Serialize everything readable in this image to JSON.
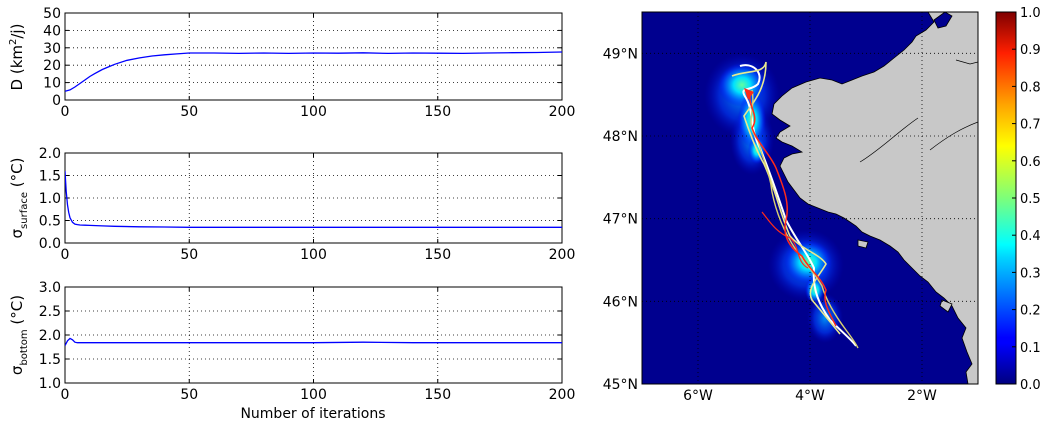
{
  "chart_data": [
    {
      "type": "line",
      "panel": "left-top",
      "ylabel": "D (km²/j)",
      "ylabel_prefix": "D (km",
      "ylabel_sup": "2",
      "ylabel_suffix": "/j)",
      "xlabel": "",
      "xlim": [
        0,
        200
      ],
      "ylim": [
        0,
        50
      ],
      "xticks": [
        "0",
        "50",
        "100",
        "150",
        "200"
      ],
      "yticks": [
        "0",
        "10",
        "20",
        "30",
        "40",
        "50"
      ],
      "grid": true,
      "color": "#0000ff",
      "x": [
        0,
        2,
        4,
        6,
        8,
        10,
        12,
        15,
        18,
        20,
        25,
        30,
        35,
        40,
        45,
        50,
        60,
        70,
        80,
        90,
        100,
        110,
        120,
        130,
        140,
        150,
        160,
        170,
        180,
        190,
        200
      ],
      "y": [
        5,
        5.8,
        7.5,
        9.5,
        11.5,
        13.5,
        15.2,
        17.5,
        19.3,
        20.5,
        22.8,
        24.2,
        25.3,
        26,
        26.5,
        27,
        27,
        26.8,
        27,
        26.8,
        27,
        26.9,
        27.1,
        26.8,
        27,
        26.9,
        26.8,
        27,
        27.2,
        27.3,
        27.6
      ]
    },
    {
      "type": "line",
      "panel": "left-middle",
      "ylabel_symbol": "σ",
      "ylabel_sub": "surface",
      "ylabel_suffix": " (°C)",
      "xlabel": "",
      "xlim": [
        0,
        200
      ],
      "ylim": [
        0,
        2
      ],
      "xticks": [
        "0",
        "50",
        "100",
        "150",
        "200"
      ],
      "yticks": [
        "0.0",
        "0.5",
        "1.0",
        "1.5",
        "2.0"
      ],
      "grid": true,
      "color": "#0000ff",
      "x": [
        0,
        0.5,
        1,
        1.5,
        2,
        3,
        4,
        5,
        6,
        8,
        10,
        15,
        20,
        30,
        40,
        50,
        75,
        100,
        125,
        150,
        175,
        200
      ],
      "y": [
        1.6,
        1.15,
        0.85,
        0.68,
        0.56,
        0.46,
        0.42,
        0.41,
        0.4,
        0.395,
        0.39,
        0.38,
        0.37,
        0.36,
        0.355,
        0.35,
        0.35,
        0.35,
        0.35,
        0.35,
        0.35,
        0.35
      ]
    },
    {
      "type": "line",
      "panel": "left-bottom",
      "ylabel_symbol": "σ",
      "ylabel_sub": "bottom",
      "ylabel_suffix": " (°C)",
      "xlabel": "Number of iterations",
      "xlim": [
        0,
        200
      ],
      "ylim": [
        1,
        3
      ],
      "xticks": [
        "0",
        "50",
        "100",
        "150",
        "200"
      ],
      "yticks": [
        "1.0",
        "1.5",
        "2.0",
        "2.5",
        "3.0"
      ],
      "grid": true,
      "color": "#0000ff",
      "x": [
        0,
        1,
        2,
        3,
        4,
        5,
        6,
        8,
        10,
        20,
        40,
        60,
        80,
        100,
        120,
        140,
        160,
        180,
        200
      ],
      "y": [
        1.78,
        1.88,
        1.93,
        1.9,
        1.85,
        1.84,
        1.84,
        1.84,
        1.84,
        1.84,
        1.84,
        1.84,
        1.84,
        1.84,
        1.85,
        1.84,
        1.84,
        1.84,
        1.84
      ]
    },
    {
      "type": "heatmap",
      "panel": "right-map",
      "xlim": [
        -7,
        -1
      ],
      "ylim": [
        45,
        49.5
      ],
      "xticks": [
        "6°W",
        "4°W",
        "2°W"
      ],
      "yticks": [
        "45°N",
        "46°N",
        "47°N",
        "48°N",
        "49°N"
      ],
      "grid": true,
      "colormap": "jet",
      "colorbar_range": [
        0.0,
        1.0
      ],
      "colorbar_ticks": [
        "0.0",
        "0.1",
        "0.2",
        "0.3",
        "0.4",
        "0.5",
        "0.6",
        "0.7",
        "0.8",
        "0.9",
        "1.0"
      ],
      "background_color": "#00008f",
      "land_color": "#c8c8c8",
      "track_colors": [
        "#ffffff",
        "#e8e890",
        "#f0e060",
        "#ff2a1a"
      ],
      "track_point": [
        -3.2,
        45.5
      ]
    }
  ]
}
